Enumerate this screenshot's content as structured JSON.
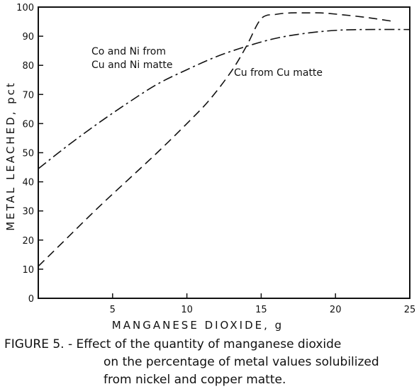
{
  "chart_data": {
    "type": "line",
    "xlabel": "MANGANESE DIOXIDE, g",
    "ylabel": "METAL LEACHED, pct",
    "xlim": [
      0,
      25
    ],
    "ylim": [
      0,
      100
    ],
    "xticks": [
      0,
      5,
      10,
      15,
      20,
      25
    ],
    "yticks": [
      0,
      10,
      20,
      30,
      40,
      50,
      60,
      70,
      80,
      90,
      100
    ],
    "grid": false,
    "series": [
      {
        "name": "Co and Ni from Cu and Ni matte",
        "style": "dash-dot",
        "x": [
          0,
          2,
          4,
          6,
          8,
          10,
          12,
          14,
          16,
          18,
          20,
          22,
          25
        ],
        "y": [
          44.5,
          52.5,
          60,
          67,
          73.5,
          78.5,
          83,
          86.5,
          89.3,
          91,
          92,
          92.3,
          92.3
        ]
      },
      {
        "name": "Cu from Cu matte",
        "style": "dashed",
        "x": [
          0,
          2,
          4,
          6,
          8,
          10,
          11.5,
          13,
          14,
          15,
          16,
          17,
          18,
          19,
          20,
          22,
          24
        ],
        "y": [
          11,
          21,
          31,
          40.5,
          50,
          60,
          68,
          78,
          86.5,
          96,
          97.5,
          98,
          98,
          98,
          97.6,
          96.5,
          95
        ]
      }
    ],
    "annotations": [
      {
        "lines": [
          "Co and Ni from",
          "Cu and Ni matte"
        ],
        "series": "Co and Ni from Cu and Ni matte"
      },
      {
        "lines": [
          "Cu from Cu matte"
        ],
        "series": "Cu from Cu matte"
      }
    ]
  },
  "caption": {
    "line1": "FIGURE 5. - Effect of the quantity of manganese dioxide",
    "line2": "on the percentage of metal values solubilized",
    "line3": "from nickel and copper matte."
  }
}
